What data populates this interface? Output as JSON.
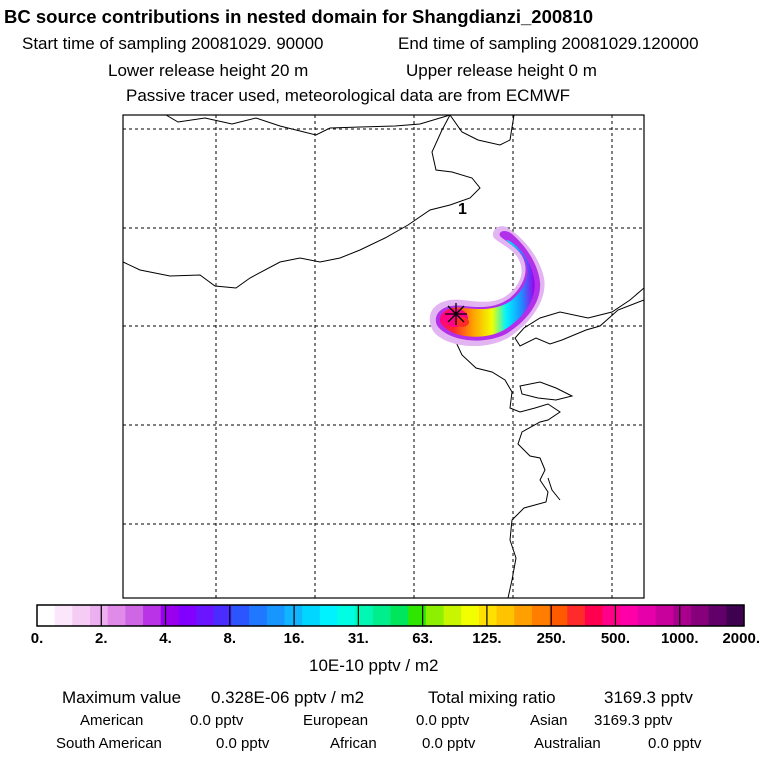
{
  "header": {
    "title": "BC  source contributions in nested domain for Shangdianzi_200810",
    "start_label": "Start time of sampling 20081029. 90000",
    "end_label": "End time of sampling 20081029.120000",
    "lower_label": "Lower release height   20 m",
    "upper_label": "Upper release height    0 m",
    "tracer_label": "Passive tracer used, meteorological data are from ECMWF"
  },
  "chart_data": {
    "type": "heatmap",
    "title": "BC  source contributions in nested domain for Shangdianzi_200810",
    "colorbar": {
      "unit_label": "10E-10 pptv / m2",
      "tick_labels": [
        "0.",
        "2.",
        "4.",
        "8.",
        "16.",
        "31.",
        "63.",
        "125.",
        "250.",
        "500.",
        "1000.",
        "2000."
      ],
      "colors": [
        "#ffffff",
        "#fbe6fb",
        "#f4ccf4",
        "#ecaff0",
        "#e08be8",
        "#cf66e3",
        "#bb33e6",
        "#9b00ee",
        "#8200ff",
        "#6a14ff",
        "#4a2cff",
        "#2c55ff",
        "#1f78ff",
        "#1896ff",
        "#10b4ff",
        "#00d6ff",
        "#00f2ff",
        "#00ffe2",
        "#00f8b4",
        "#00ef8c",
        "#00e65c",
        "#2ee600",
        "#8cf000",
        "#c8f500",
        "#f2ff00",
        "#ffe000",
        "#ffc400",
        "#ffa000",
        "#ff7e00",
        "#ff5a00",
        "#ff2a2a",
        "#ff0050",
        "#ff0088",
        "#ff00a8",
        "#e600aa",
        "#c8009c",
        "#a8008c",
        "#85007a",
        "#600068",
        "#400050"
      ]
    },
    "marker_label": "1",
    "receptor_symbol": "*"
  },
  "footer": {
    "max_label": "Maximum value",
    "max_value": "0.328E-06 pptv / m2",
    "total_label": "Total mixing ratio",
    "total_value": "3169.3 pptv",
    "regions": [
      {
        "name": "American",
        "value": "0.0 pptv"
      },
      {
        "name": "European",
        "value": "0.0 pptv"
      },
      {
        "name": "Asian",
        "value": "3169.3 pptv"
      },
      {
        "name": "South American",
        "value": "0.0 pptv"
      },
      {
        "name": "African",
        "value": "0.0 pptv"
      },
      {
        "name": "Australian",
        "value": "0.0 pptv"
      }
    ]
  }
}
